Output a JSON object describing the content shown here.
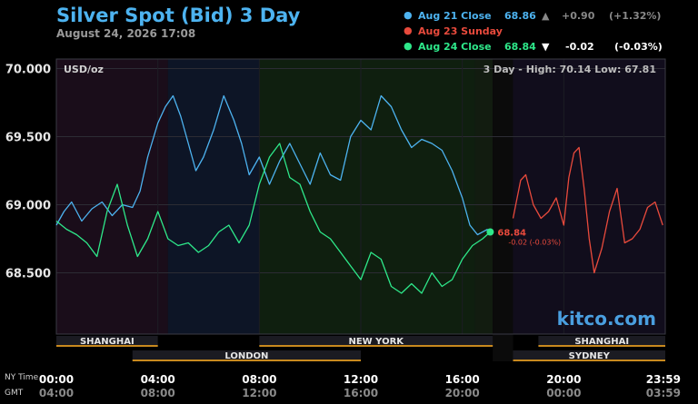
{
  "header": {
    "title": "Silver Spot (Bid) 3 Day",
    "timestamp": "August 24, 2026 17:08"
  },
  "legend": [
    {
      "dot_color": "#4db3f0",
      "label": "Aug 21 Close",
      "value": "68.86",
      "arrow": "▲",
      "change": "+0.90",
      "percent": "(+1.32%)",
      "label_color": "#4db3f0",
      "value_color": "#4db3f0",
      "change_color": "#888888"
    },
    {
      "dot_color": "#e84a3c",
      "label": "Aug 23 Sunday",
      "value": "",
      "arrow": "",
      "change": "",
      "percent": "",
      "label_color": "#e84a3c",
      "value_color": "#e84a3c",
      "change_color": "#e84a3c"
    },
    {
      "dot_color": "#2ee88a",
      "label": "Aug 24 Close",
      "value": "68.84",
      "arrow": "▼",
      "change": "-0.02",
      "percent": "(-0.03%)",
      "label_color": "#2ee88a",
      "value_color": "#2ee88a",
      "change_color": "#ffffff"
    }
  ],
  "chart_data": {
    "type": "line",
    "unit_label": "USD/oz",
    "range_text": "3 Day - High: 70.14  Low: 67.81",
    "watermark": "kitco.com",
    "y_ticks": [
      "70.000",
      "69.500",
      "69.000",
      "68.500"
    ],
    "ylim": [
      68.05,
      70.07
    ],
    "xlim_hours": [
      0,
      24
    ],
    "x_ticks_ny": [
      "00:00",
      "04:00",
      "08:00",
      "12:00",
      "16:00",
      "20:00",
      "23:59"
    ],
    "x_ticks_gmt": [
      "04:00",
      "08:00",
      "12:00",
      "16:00",
      "20:00",
      "00:00",
      "03:59"
    ],
    "axis_label_ny": "NY Time",
    "axis_label_gmt": "GMT",
    "sessions": [
      {
        "name": "SHANGHAI",
        "row": 1
      },
      {
        "name": "NEW YORK",
        "row": 1
      },
      {
        "name": "SHANGHAI",
        "row": 1
      },
      {
        "name": "LONDON",
        "row": 2
      },
      {
        "name": "SYDNEY",
        "row": 2
      }
    ],
    "current_marker": {
      "label": "68.84",
      "change": "-0.02 (-0.03%)"
    },
    "series": [
      {
        "name": "Aug 21 Close",
        "color": "#4db3f0",
        "x": [
          0,
          0.3,
          0.6,
          1,
          1.4,
          1.8,
          2.2,
          2.6,
          3,
          3.3,
          3.6,
          4,
          4.3,
          4.6,
          4.9,
          5.2,
          5.5,
          5.8,
          6.2,
          6.6,
          7,
          7.3,
          7.6,
          8,
          8.4,
          8.8,
          9.2,
          9.6,
          10,
          10.4,
          10.8,
          11.2,
          11.6,
          12,
          12.4,
          12.8,
          13.2,
          13.6,
          14,
          14.4,
          14.8,
          15.2,
          15.6,
          16,
          16.3,
          16.6,
          17
        ],
        "y": [
          68.85,
          68.95,
          69.02,
          68.88,
          68.97,
          69.02,
          68.92,
          69.0,
          68.98,
          69.1,
          69.35,
          69.6,
          69.72,
          69.8,
          69.65,
          69.45,
          69.25,
          69.35,
          69.55,
          69.8,
          69.62,
          69.45,
          69.22,
          69.35,
          69.15,
          69.32,
          69.45,
          69.3,
          69.15,
          69.38,
          69.22,
          69.18,
          69.5,
          69.62,
          69.55,
          69.8,
          69.72,
          69.55,
          69.42,
          69.48,
          69.45,
          69.4,
          69.25,
          69.05,
          68.85,
          68.78,
          68.82
        ]
      },
      {
        "name": "Aug 23 Sunday",
        "color": "#e84a3c",
        "x": [
          18,
          18.3,
          18.5,
          18.8,
          19.1,
          19.4,
          19.7,
          20,
          20.2,
          20.4,
          20.6,
          20.8,
          21,
          21.2,
          21.5,
          21.8,
          22.1,
          22.4,
          22.7,
          23,
          23.3,
          23.6,
          23.9
        ],
        "y": [
          68.9,
          69.18,
          69.22,
          69.0,
          68.9,
          68.95,
          69.05,
          68.85,
          69.2,
          69.38,
          69.42,
          69.12,
          68.75,
          68.5,
          68.68,
          68.95,
          69.12,
          68.72,
          68.75,
          68.82,
          68.98,
          69.02,
          68.85
        ]
      },
      {
        "name": "Aug 24 Close",
        "color": "#2ee88a",
        "x": [
          0,
          0.4,
          0.8,
          1.2,
          1.6,
          2,
          2.4,
          2.8,
          3.2,
          3.6,
          4,
          4.4,
          4.8,
          5.2,
          5.6,
          6,
          6.4,
          6.8,
          7.2,
          7.6,
          8,
          8.4,
          8.8,
          9.2,
          9.6,
          10,
          10.4,
          10.8,
          11.2,
          11.6,
          12,
          12.4,
          12.8,
          13.2,
          13.6,
          14,
          14.4,
          14.8,
          15.2,
          15.6,
          16,
          16.4,
          16.8,
          17.1
        ],
        "y": [
          68.88,
          68.82,
          68.78,
          68.72,
          68.62,
          68.95,
          69.15,
          68.85,
          68.62,
          68.75,
          68.95,
          68.75,
          68.7,
          68.72,
          68.65,
          68.7,
          68.8,
          68.85,
          68.72,
          68.85,
          69.15,
          69.35,
          69.45,
          69.2,
          69.15,
          68.95,
          68.8,
          68.75,
          68.65,
          68.55,
          68.45,
          68.65,
          68.6,
          68.4,
          68.35,
          68.42,
          68.35,
          68.5,
          68.4,
          68.45,
          68.6,
          68.7,
          68.75,
          68.8
        ]
      }
    ]
  }
}
